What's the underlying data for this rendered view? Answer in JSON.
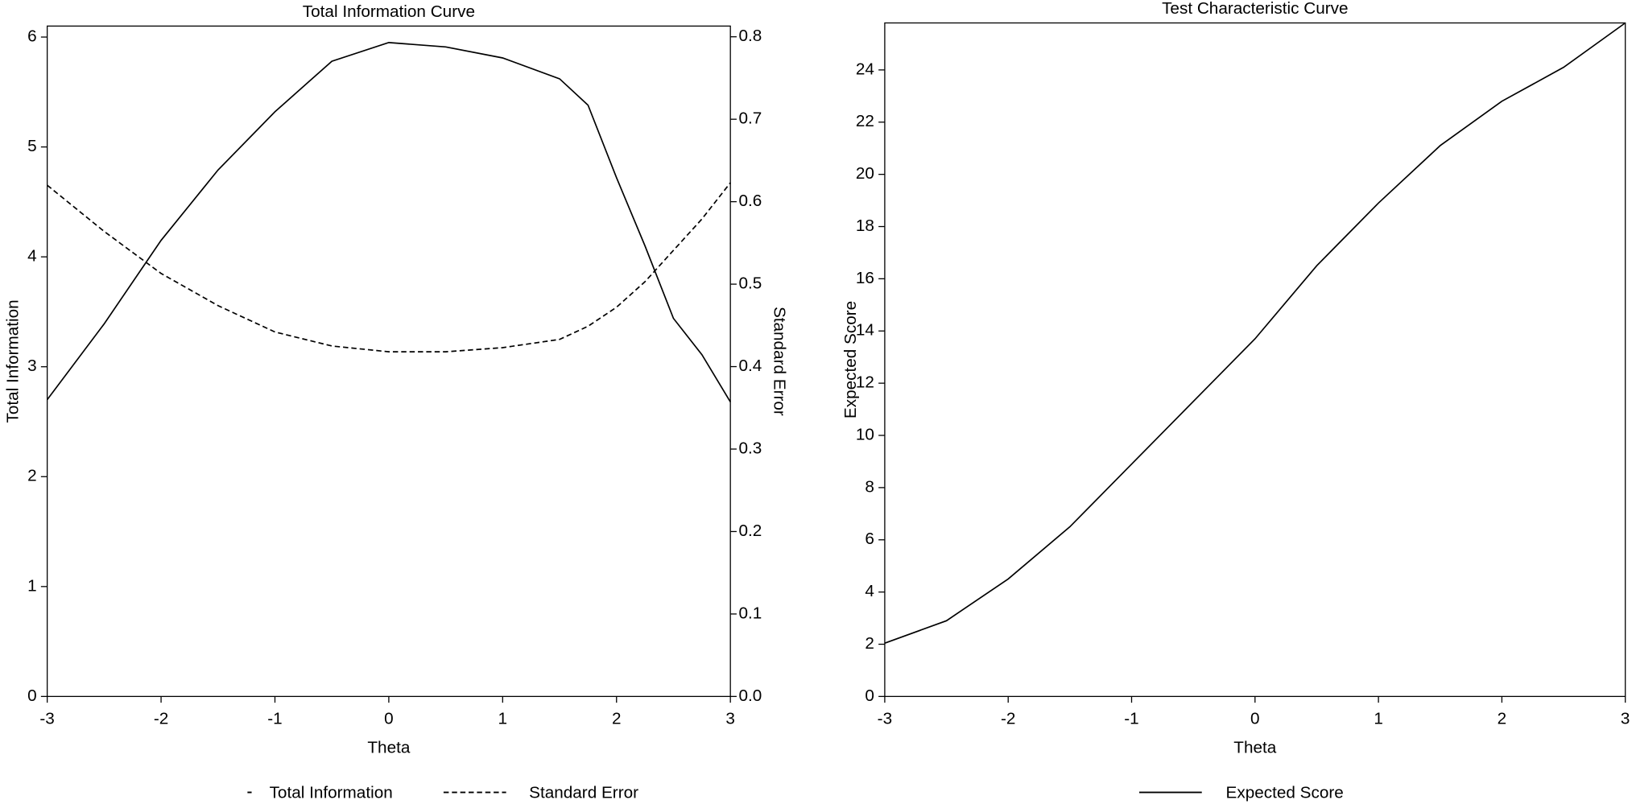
{
  "chart_data": [
    {
      "type": "line",
      "title": "Total Information Curve",
      "x_label": "Theta",
      "y_label": "Total Information",
      "y2_label": "Standard Error",
      "x": [
        -3,
        -2.5,
        -2,
        -1.5,
        -1,
        -0.5,
        0,
        0.5,
        1,
        1.5,
        1.75,
        2,
        2.25,
        2.5,
        2.75,
        3
      ],
      "series": [
        {
          "name": "Total Information",
          "color": "#000000",
          "line_style": "solid",
          "values": [
            2.7,
            3.39,
            4.15,
            4.79,
            5.32,
            5.78,
            5.95,
            5.91,
            5.81,
            5.62,
            5.38,
            4.72,
            4.1,
            3.44,
            3.11,
            2.68
          ]
        },
        {
          "name": "Standard Error",
          "color": "#000000",
          "line_style": "dashed",
          "axis": "y2",
          "values": [
            0.62,
            0.564,
            0.513,
            0.474,
            0.442,
            0.425,
            0.418,
            0.418,
            0.423,
            0.433,
            0.449,
            0.472,
            0.503,
            0.541,
            0.579,
            0.623
          ]
        }
      ],
      "xlim": [
        -3,
        3
      ],
      "xticks": [
        -3,
        -2,
        -1,
        0,
        1,
        2,
        3
      ],
      "ylim": [
        0,
        6.1
      ],
      "yticks": [
        0,
        1,
        2,
        3,
        4,
        5,
        6
      ],
      "y2lim": [
        0,
        0.813
      ],
      "y2ticks": [
        {
          "value": 0,
          "label": "0.0"
        },
        0.1,
        0.2,
        0.3,
        0.4,
        0.5,
        0.6,
        0.7,
        0.8
      ],
      "legend": "bottom"
    },
    {
      "type": "line",
      "title": "Test Characteristic Curve",
      "x_label": "Theta",
      "y_label": "Expected Score",
      "x": [
        -3,
        -2.5,
        -2,
        -1.5,
        -1,
        -0.5,
        0,
        0.5,
        1,
        1.5,
        2,
        2.5,
        3
      ],
      "series": [
        {
          "name": "Expected Score",
          "color": "#000000",
          "line_style": "solid",
          "values": [
            2.04,
            2.9,
            4.5,
            6.5,
            8.9,
            11.3,
            13.7,
            16.5,
            18.9,
            21.1,
            22.8,
            24.1,
            25.8
          ]
        }
      ],
      "xlim": [
        -3,
        3
      ],
      "xticks": [
        -3,
        -2,
        -1,
        0,
        1,
        2,
        3
      ],
      "ylim": [
        0,
        25.8
      ],
      "yticks": [
        0,
        2,
        4,
        6,
        8,
        10,
        12,
        14,
        16,
        18,
        20,
        22,
        24
      ],
      "legend": "bottom"
    }
  ]
}
